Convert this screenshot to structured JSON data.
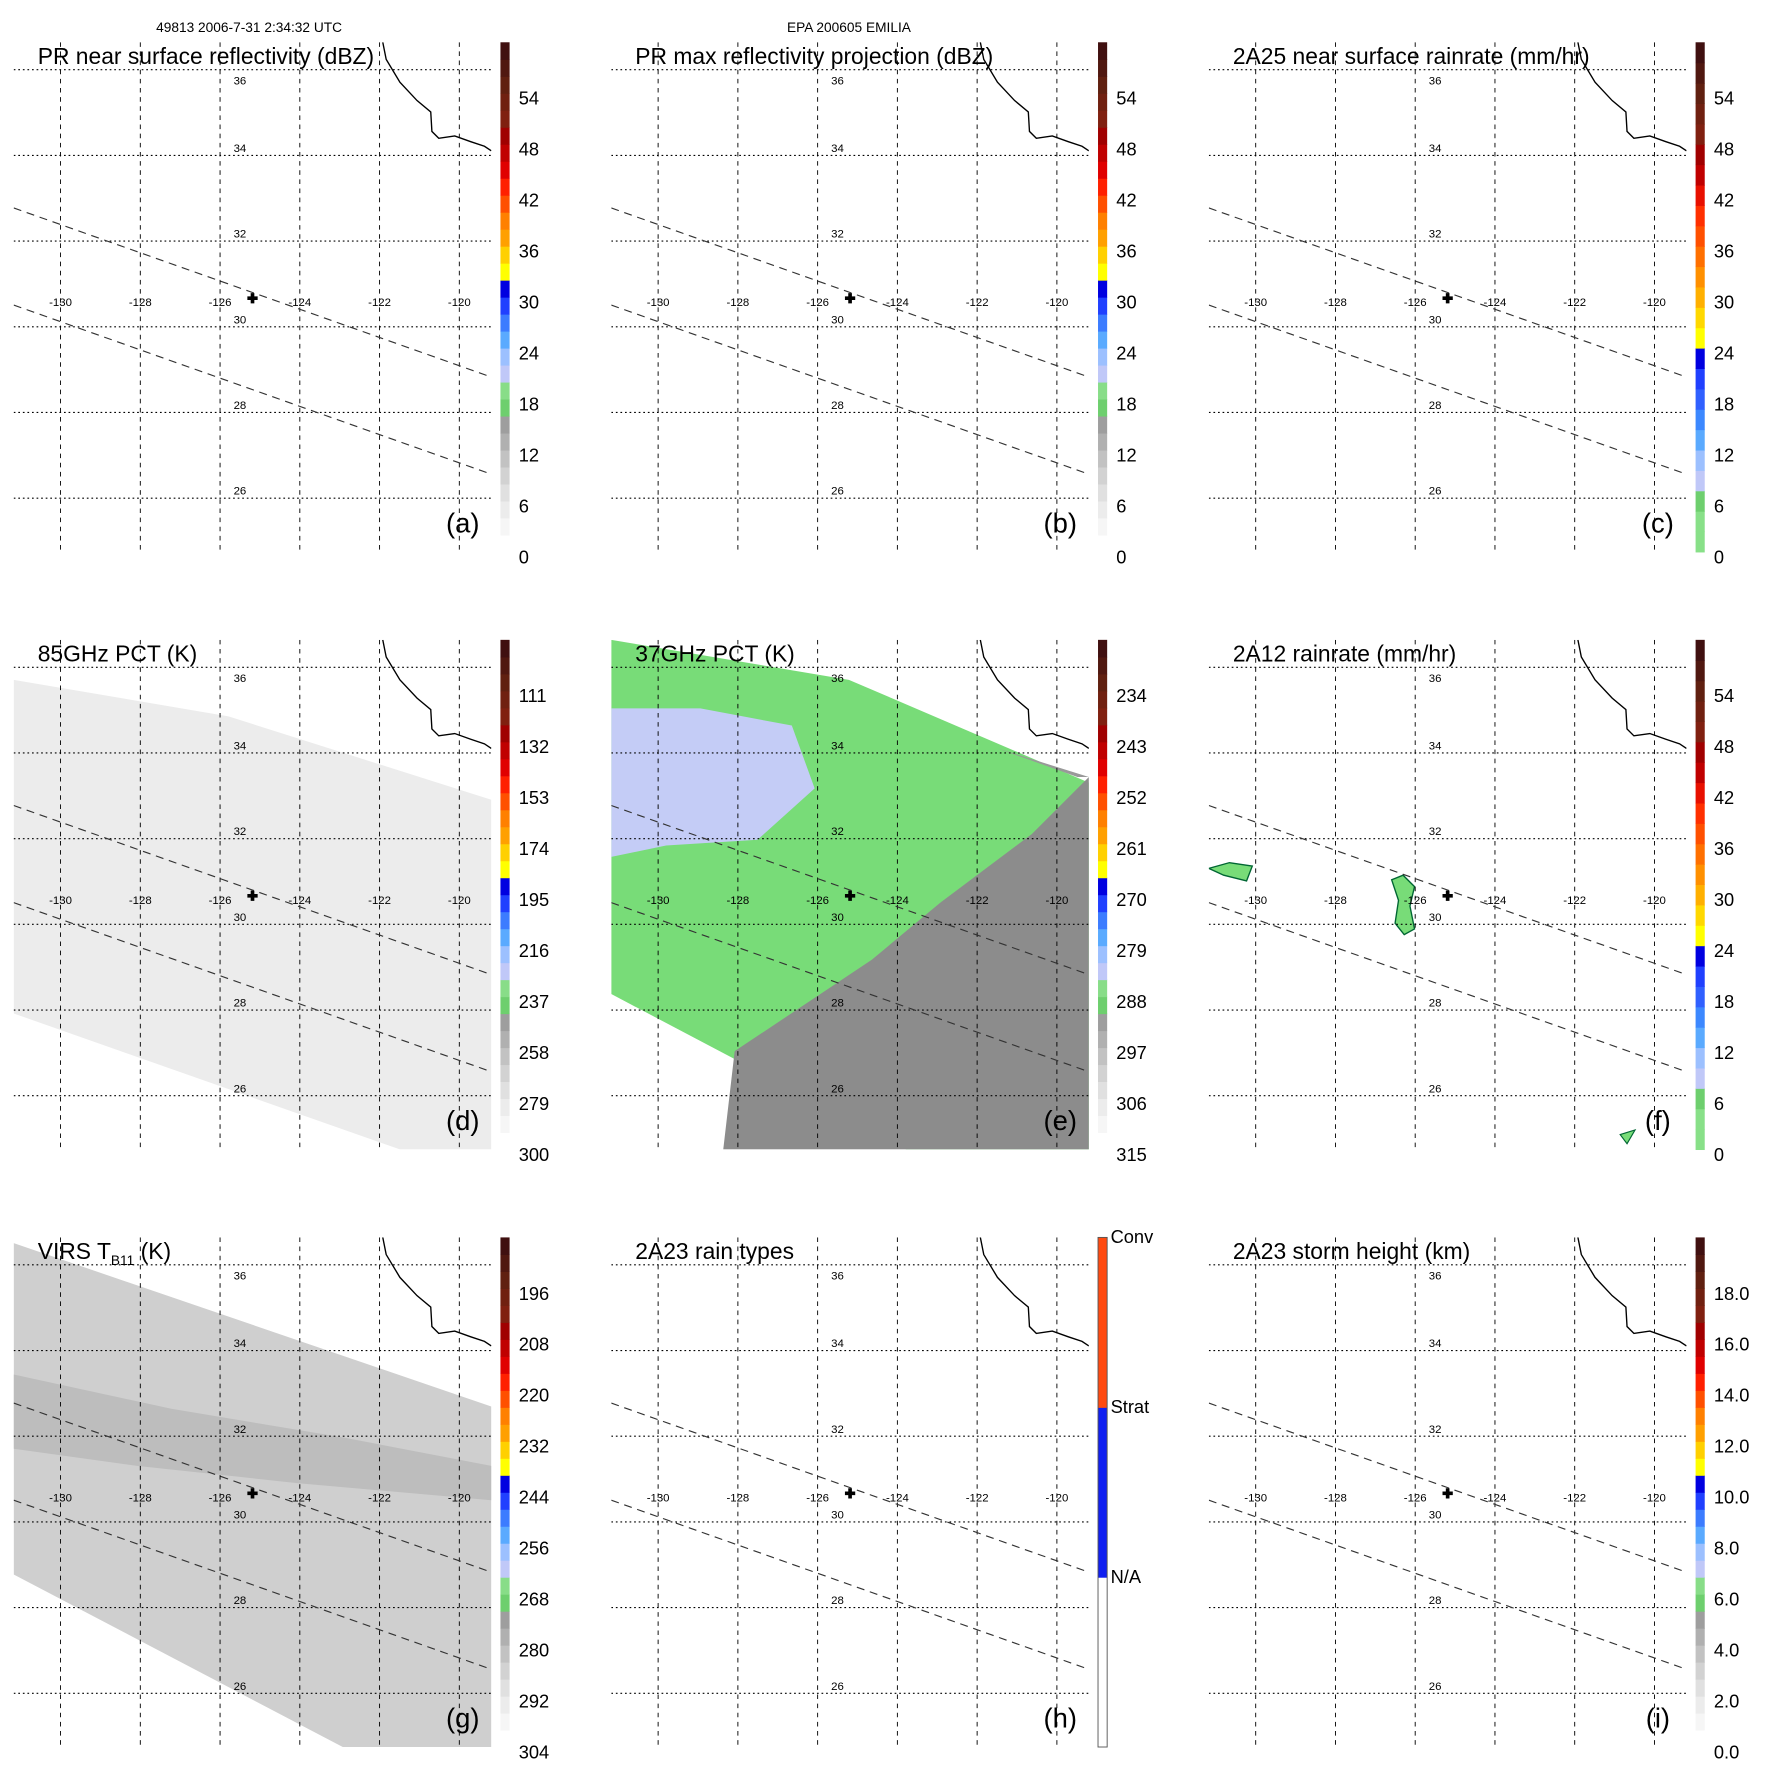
{
  "header": {
    "orbit_time": "49813 2006-7-31 2:34:32 UTC",
    "storm": "EPA 200605 EMILIA"
  },
  "chart_data": {
    "type": "heatmap",
    "title": "49813 2006-7-31 2:34:32 UTC / EPA 200605 EMILIA",
    "lon_ticks": [
      "-130",
      "-128",
      "-126",
      "-124",
      "-122",
      "-120"
    ],
    "lat_ticks": [
      "36",
      "34",
      "32",
      "30",
      "28",
      "26"
    ],
    "xlim": [
      -131.2,
      -119.2
    ],
    "ylim": [
      25.4,
      37.2
    ],
    "storm_center": {
      "lon": -125.2,
      "lat": 30.7
    },
    "panels": [
      {
        "id": "a",
        "title": "PR near surface reflectivity (dBZ)",
        "letter": "(a)",
        "scale": "dbz",
        "cb_labels": [
          "0",
          "6",
          "12",
          "18",
          "24",
          "30",
          "36",
          "42",
          "48",
          "54"
        ],
        "fill": "none"
      },
      {
        "id": "b",
        "title": "PR max reflectivity projection (dBZ)",
        "letter": "(b)",
        "scale": "dbz",
        "cb_labels": [
          "0",
          "6",
          "12",
          "18",
          "24",
          "30",
          "36",
          "42",
          "48",
          "54"
        ],
        "fill": "none"
      },
      {
        "id": "c",
        "title": "2A25 near surface rainrate (mm/hr)",
        "letter": "(c)",
        "scale": "rain",
        "cb_labels": [
          "0",
          "6",
          "12",
          "18",
          "24",
          "30",
          "36",
          "42",
          "48",
          "54"
        ],
        "fill": "none"
      },
      {
        "id": "d",
        "title": "85GHz PCT (K)",
        "letter": "(d)",
        "scale": "dbz",
        "cb_labels": [
          "300",
          "279",
          "258",
          "237",
          "216",
          "195",
          "174",
          "153",
          "132",
          "111"
        ],
        "fill": "light"
      },
      {
        "id": "e",
        "title": "37GHz PCT (K)",
        "letter": "(e)",
        "scale": "dbz",
        "cb_labels": [
          "315",
          "306",
          "297",
          "288",
          "279",
          "270",
          "261",
          "252",
          "243",
          "234"
        ],
        "fill": "pct37"
      },
      {
        "id": "f",
        "title": "2A12 rainrate (mm/hr)",
        "letter": "(f)",
        "scale": "rain",
        "cb_labels": [
          "0",
          "6",
          "12",
          "18",
          "24",
          "30",
          "36",
          "42",
          "48",
          "54"
        ],
        "fill": "blobs"
      },
      {
        "id": "g",
        "title": "VIRS T",
        "title_sub": "B11",
        "title_suffix": " (K)",
        "letter": "(g)",
        "scale": "dbz",
        "cb_labels": [
          "304",
          "292",
          "280",
          "268",
          "256",
          "244",
          "232",
          "220",
          "208",
          "196"
        ],
        "fill": "virs"
      },
      {
        "id": "h",
        "title": "2A23 rain types",
        "letter": "(h)",
        "scale": "types",
        "cb_labels": [
          "N/A",
          "Strat",
          "Conv"
        ],
        "fill": "none"
      },
      {
        "id": "i",
        "title": "2A23 storm height (km)",
        "letter": "(i)",
        "scale": "dbz",
        "cb_labels": [
          "0.0",
          "2.0",
          "4.0",
          "6.0",
          "8.0",
          "10.0",
          "12.0",
          "14.0",
          "16.0",
          "18.0"
        ],
        "fill": "none"
      }
    ]
  },
  "colors": {
    "dbz": [
      "#ffffff",
      "#f6f6f6",
      "#ececec",
      "#e0e0e0",
      "#d2d2d2",
      "#c2c2c2",
      "#b0b0b0",
      "#9e9e9e",
      "#6ecf6e",
      "#88dd88",
      "#c0c8f8",
      "#9cc0ff",
      "#5aaaff",
      "#3c7cff",
      "#2040ff",
      "#0000e0",
      "#ffff00",
      "#ffd000",
      "#ffa000",
      "#ff8000",
      "#ff5000",
      "#ff2000",
      "#e00000",
      "#c00000",
      "#a00000",
      "#802010",
      "#702010",
      "#602010",
      "#501810",
      "#401010"
    ],
    "rain": [
      "#88e088",
      "#88e088",
      "#6ecf6e",
      "#c0c8f8",
      "#9cc0ff",
      "#5aaaff",
      "#3c88ff",
      "#3060ff",
      "#2040ff",
      "#0000e0",
      "#ffff00",
      "#ffd800",
      "#ffb000",
      "#ff9000",
      "#ff7000",
      "#ff5000",
      "#ff3000",
      "#e81000",
      "#c00000",
      "#a00000",
      "#802010",
      "#702010",
      "#602010",
      "#501810",
      "#401010"
    ],
    "types": [
      "#ffffff",
      "#1020f0",
      "#ff4a10"
    ],
    "map_green": "#78dc78",
    "map_gray": "#8c8c8c",
    "map_lavender": "#c4ccf6"
  }
}
